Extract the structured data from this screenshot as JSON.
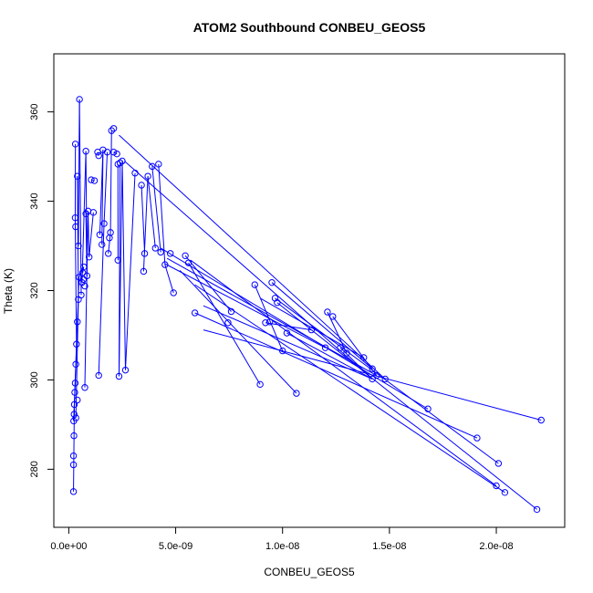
{
  "chart_data": {
    "type": "line",
    "title": "ATOM2 Southbound CONBEU_GEOS5",
    "xlabel": "CONBEU_GEOS5",
    "ylabel": "Theta (K)",
    "xlim": [
      -7e-10,
      2.32e-08
    ],
    "ylim": [
      267,
      373
    ],
    "x_ticks": [
      0,
      5e-09,
      1e-08,
      1.5e-08,
      2e-08
    ],
    "x_tick_labels": [
      "0.0e+00",
      "5.0e-09",
      "1.0e-08",
      "1.5e-08",
      "2.0e-08"
    ],
    "y_ticks": [
      280,
      300,
      320,
      340,
      360
    ],
    "y_tick_labels": [
      "280",
      "300",
      "320",
      "340",
      "360"
    ],
    "grid": false,
    "marker": "open-circle",
    "color": "#0000ff",
    "series": [
      {
        "points": [
          [
            2.2e-10,
            275.0
          ],
          [
            2.2e-10,
            281.0
          ],
          [
            2.2e-10,
            283.0
          ],
          [
            2.4e-10,
            287.5
          ],
          [
            2.3e-10,
            290.8
          ],
          [
            2.5e-10,
            292.3
          ],
          [
            2.6e-10,
            294.5
          ],
          [
            2.8e-10,
            297.2
          ],
          [
            3e-10,
            299.3
          ],
          [
            3.3e-10,
            303.5
          ],
          [
            3.6e-10,
            308.0
          ],
          [
            4e-10,
            313.0
          ],
          [
            4.5e-10,
            318.0
          ],
          [
            3.2e-10,
            334.3
          ],
          [
            3e-10,
            336.3
          ],
          [
            3.1e-10,
            352.8
          ],
          [
            3.3e-10,
            291.5
          ],
          [
            4e-10,
            295.5
          ],
          [
            4.5e-10,
            330.0
          ],
          [
            4e-10,
            345.6
          ],
          [
            4.8e-10,
            323.0
          ],
          [
            5e-10,
            362.8
          ],
          [
            5.8e-10,
            319.0
          ],
          [
            6.2e-10,
            321.8
          ],
          [
            6.5e-10,
            324.0
          ],
          [
            7e-10,
            325.3
          ],
          [
            6.8e-10,
            322.5
          ],
          [
            7.5e-10,
            321.0
          ],
          [
            8e-10,
            351.2
          ],
          [
            8.5e-10,
            323.3
          ],
          [
            8e-10,
            337.2
          ],
          [
            7.5e-10,
            298.3
          ],
          [
            9e-10,
            337.8
          ],
          [
            9.5e-10,
            327.5
          ],
          [
            1.15e-09,
            337.5
          ],
          [
            1.05e-09,
            344.8
          ],
          [
            1.2e-09,
            344.6
          ],
          [
            1.35e-09,
            351.0
          ],
          [
            1.4e-09,
            350.2
          ],
          [
            1.45e-09,
            332.5
          ],
          [
            1.6e-09,
            351.5
          ],
          [
            1.55e-09,
            330.3
          ],
          [
            1.4e-09,
            301.0
          ],
          [
            1.65e-09,
            335.0
          ],
          [
            1.8e-09,
            351.0
          ],
          [
            1.85e-09,
            328.3
          ],
          [
            1.9e-09,
            331.8
          ],
          [
            1.95e-09,
            333.0
          ],
          [
            2e-09,
            355.8
          ],
          [
            2.1e-09,
            356.3
          ],
          [
            2.1e-09,
            351.0
          ],
          [
            2.25e-09,
            350.6
          ],
          [
            2.3e-09,
            348.3
          ],
          [
            2.3e-09,
            326.8
          ],
          [
            2.4e-09,
            348.6
          ],
          [
            2.35e-09,
            300.8
          ],
          [
            2.5e-09,
            349.0
          ],
          [
            2.65e-09,
            302.2
          ],
          [
            3.1e-09,
            346.3
          ],
          [
            3.4e-09,
            343.6
          ],
          [
            3.55e-09,
            328.3
          ],
          [
            3.5e-09,
            324.3
          ],
          [
            3.7e-09,
            345.6
          ],
          [
            3.9e-09,
            347.8
          ],
          [
            4.05e-09,
            329.5
          ],
          [
            4.2e-09,
            348.3
          ],
          [
            4.3e-09,
            328.6
          ],
          [
            4.5e-09,
            325.8
          ],
          [
            4.75e-09,
            328.3
          ],
          [
            4.9e-09,
            319.5
          ],
          [
            5.45e-09,
            327.8
          ],
          [
            5.6e-09,
            326.2
          ],
          [
            5.9e-09,
            315.0
          ],
          [
            7.45e-09,
            312.8
          ],
          [
            7.6e-09,
            315.3
          ],
          [
            8.7e-09,
            321.3
          ],
          [
            8.95e-09,
            299.0
          ],
          [
            9.2e-09,
            312.8
          ],
          [
            9.4e-09,
            313.0
          ],
          [
            9.5e-09,
            321.8
          ],
          [
            9.65e-09,
            318.3
          ],
          [
            9.75e-09,
            317.3
          ],
          [
            1e-08,
            306.5
          ],
          [
            1.02e-08,
            310.5
          ],
          [
            1.065e-08,
            297.0
          ],
          [
            1.135e-08,
            311.2
          ],
          [
            1.2e-08,
            307.2
          ],
          [
            1.21e-08,
            315.2
          ],
          [
            1.235e-08,
            314.2
          ],
          [
            1.27e-08,
            307.2
          ],
          [
            1.3e-08,
            306.0
          ],
          [
            1.38e-08,
            305.0
          ],
          [
            1.42e-08,
            302.5
          ],
          [
            1.44e-08,
            301.0
          ],
          [
            1.42e-08,
            300.2
          ],
          [
            1.48e-08,
            300.2
          ],
          [
            1.68e-08,
            293.5
          ],
          [
            1.91e-08,
            287.0
          ],
          [
            2e-08,
            276.3
          ],
          [
            2.01e-08,
            281.3
          ],
          [
            2.04e-08,
            274.8
          ],
          [
            2.19e-08,
            271.0
          ],
          [
            2.21e-08,
            291.0
          ]
        ],
        "segments": [
          [
            [
              2.2e-10,
              275.0
            ],
            [
              2.6e-10,
              294.5
            ]
          ],
          [
            [
              2.6e-10,
              294.5
            ],
            [
              2.3e-10,
              290.8
            ]
          ],
          [
            [
              2.3e-10,
              290.8
            ],
            [
              3.6e-10,
              308.0
            ]
          ],
          [
            [
              3.6e-10,
              308.0
            ],
            [
              3e-10,
              336.3
            ]
          ],
          [
            [
              3e-10,
              336.3
            ],
            [
              3.1e-10,
              352.8
            ]
          ],
          [
            [
              3.3e-10,
              291.5
            ],
            [
              4.5e-10,
              318.0
            ]
          ],
          [
            [
              4.5e-10,
              318.0
            ],
            [
              4e-10,
              345.6
            ]
          ],
          [
            [
              4e-10,
              345.6
            ],
            [
              4.5e-10,
              330.0
            ]
          ],
          [
            [
              4.5e-10,
              330.0
            ],
            [
              5e-10,
              362.8
            ]
          ],
          [
            [
              5e-10,
              362.8
            ],
            [
              5.8e-10,
              319.0
            ]
          ],
          [
            [
              2.5e-10,
              292.3
            ],
            [
              3.3e-10,
              303.5
            ]
          ],
          [
            [
              3.3e-10,
              303.5
            ],
            [
              4.8e-10,
              323.0
            ]
          ],
          [
            [
              4.8e-10,
              323.0
            ],
            [
              7e-10,
              325.3
            ]
          ],
          [
            [
              7e-10,
              325.3
            ],
            [
              6.5e-10,
              324.0
            ]
          ],
          [
            [
              6.2e-10,
              321.8
            ],
            [
              8e-10,
              351.2
            ]
          ],
          [
            [
              8e-10,
              351.2
            ],
            [
              8.5e-10,
              323.3
            ]
          ],
          [
            [
              8.5e-10,
              323.3
            ],
            [
              8e-10,
              337.2
            ]
          ],
          [
            [
              7.5e-10,
              298.3
            ],
            [
              9e-10,
              337.8
            ]
          ],
          [
            [
              9e-10,
              337.8
            ],
            [
              9.5e-10,
              327.5
            ]
          ],
          [
            [
              9.5e-10,
              327.5
            ],
            [
              1.15e-09,
              337.5
            ]
          ],
          [
            [
              1.05e-09,
              344.8
            ],
            [
              1.2e-09,
              344.6
            ]
          ],
          [
            [
              1.35e-09,
              351.0
            ],
            [
              1.4e-09,
              350.2
            ]
          ],
          [
            [
              1.45e-09,
              332.5
            ],
            [
              1.6e-09,
              351.5
            ]
          ],
          [
            [
              1.6e-09,
              351.5
            ],
            [
              1.55e-09,
              330.3
            ]
          ],
          [
            [
              1.4e-09,
              301.0
            ],
            [
              1.65e-09,
              335.0
            ]
          ],
          [
            [
              1.65e-09,
              335.0
            ],
            [
              1.8e-09,
              351.0
            ]
          ],
          [
            [
              1.85e-09,
              328.3
            ],
            [
              1.95e-09,
              333.0
            ]
          ],
          [
            [
              1.95e-09,
              333.0
            ],
            [
              2e-09,
              355.8
            ]
          ],
          [
            [
              2.1e-09,
              351.0
            ],
            [
              2.25e-09,
              350.6
            ]
          ],
          [
            [
              2.3e-09,
              348.3
            ],
            [
              2.3e-09,
              326.8
            ]
          ],
          [
            [
              2.4e-09,
              348.6
            ],
            [
              2.35e-09,
              300.8
            ]
          ],
          [
            [
              2.35e-09,
              300.8
            ],
            [
              2.5e-09,
              349.0
            ]
          ],
          [
            [
              2.5e-09,
              349.0
            ],
            [
              2.65e-09,
              302.2
            ]
          ],
          [
            [
              2.65e-09,
              302.2
            ],
            [
              3.1e-09,
              346.3
            ]
          ],
          [
            [
              3.4e-09,
              343.6
            ],
            [
              3.55e-09,
              328.3
            ]
          ],
          [
            [
              3.5e-09,
              324.3
            ],
            [
              3.7e-09,
              345.6
            ]
          ],
          [
            [
              3.7e-09,
              345.6
            ],
            [
              4.05e-09,
              329.5
            ]
          ],
          [
            [
              3.9e-09,
              347.8
            ],
            [
              4.3e-09,
              328.6
            ]
          ],
          [
            [
              4.2e-09,
              348.3
            ],
            [
              4.5e-09,
              325.8
            ]
          ],
          [
            [
              4.5e-09,
              325.8
            ],
            [
              4.9e-09,
              319.5
            ]
          ],
          [
            [
              2.6e-09,
              349.0
            ],
            [
              1.42e-08,
              300.2
            ]
          ],
          [
            [
              2.35e-09,
              354.8
            ],
            [
              1.48e-08,
              300.2
            ]
          ],
          [
            [
              4.3e-09,
              329.5
            ],
            [
              1.68e-08,
              293.5
            ]
          ],
          [
            [
              4.5e-09,
              326.0
            ],
            [
              1.2e-08,
              307.2
            ]
          ],
          [
            [
              4.6e-09,
              327.2
            ],
            [
              1.44e-08,
              301.0
            ]
          ],
          [
            [
              5.45e-09,
              327.8
            ],
            [
              7.6e-09,
              315.3
            ]
          ],
          [
            [
              5.6e-09,
              326.2
            ],
            [
              8.95e-09,
              299.0
            ]
          ],
          [
            [
              5.7e-09,
              326.8
            ],
            [
              2e-08,
              276.3
            ]
          ],
          [
            [
              5.2e-09,
              324.5
            ],
            [
              1.065e-08,
              297.0
            ]
          ],
          [
            [
              5.9e-09,
              321.3
            ],
            [
              2.04e-08,
              274.8
            ]
          ],
          [
            [
              5.9e-09,
              315.0
            ],
            [
              1.91e-08,
              287.0
            ]
          ],
          [
            [
              6.3e-09,
              316.6
            ],
            [
              1.42e-08,
              300.2
            ]
          ],
          [
            [
              6.3e-09,
              311.2
            ],
            [
              2.21e-08,
              291.0
            ]
          ],
          [
            [
              8.7e-09,
              321.3
            ],
            [
              1e-08,
              306.5
            ]
          ],
          [
            [
              8.95e-09,
              318.3
            ],
            [
              1.38e-08,
              305.0
            ]
          ],
          [
            [
              9.2e-09,
              312.8
            ],
            [
              1.135e-08,
              311.2
            ]
          ],
          [
            [
              9.5e-09,
              321.8
            ],
            [
              1.42e-08,
              302.5
            ]
          ],
          [
            [
              9.65e-09,
              318.3
            ],
            [
              2.01e-08,
              281.3
            ]
          ],
          [
            [
              9.75e-09,
              317.3
            ],
            [
              2.19e-08,
              271.0
            ]
          ],
          [
            [
              1.02e-08,
              310.5
            ],
            [
              1.42e-08,
              300.2
            ]
          ],
          [
            [
              1.21e-08,
              315.2
            ],
            [
              1.3e-08,
              306.0
            ]
          ],
          [
            [
              1.235e-08,
              314.2
            ],
            [
              1.44e-08,
              301.0
            ]
          ],
          [
            [
              1.27e-08,
              307.2
            ],
            [
              1.42e-08,
              300.2
            ]
          ]
        ]
      }
    ]
  }
}
